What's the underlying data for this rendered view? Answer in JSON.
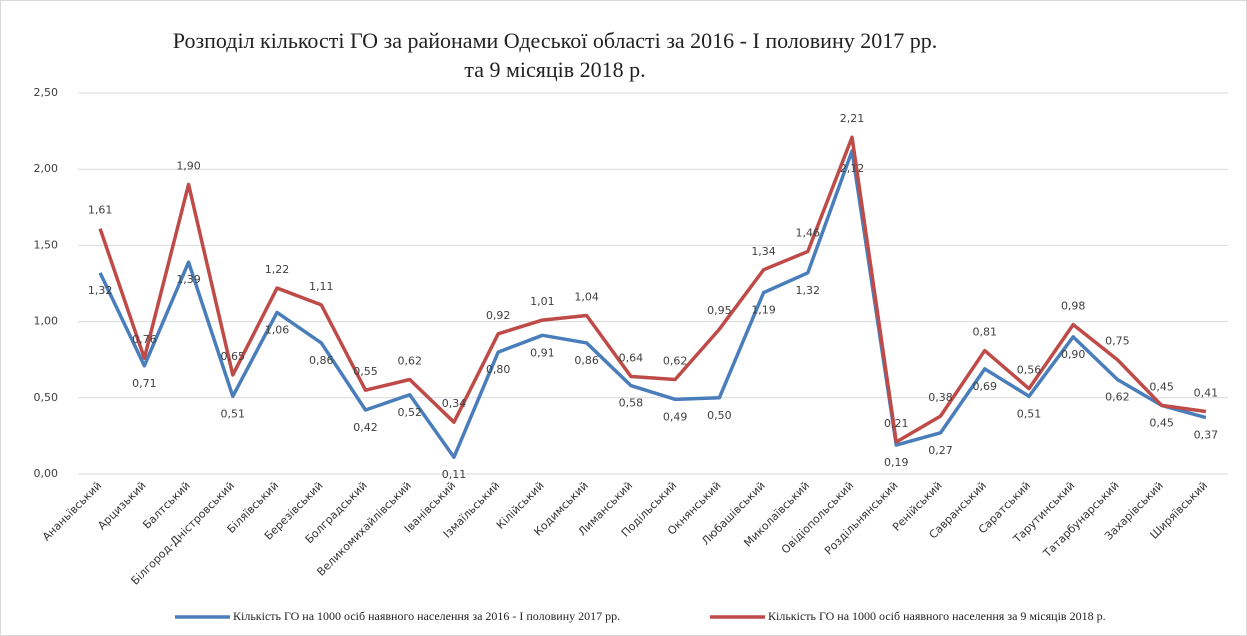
{
  "chart_data": {
    "type": "line",
    "title": [
      "Розподіл кількості ГО за районами Одеської області за 2016  - І половину 2017 рр.",
      "та 9 місяців 2018 р."
    ],
    "categories": [
      "Ананьївський",
      "Арцизький",
      "Балтський",
      "Білгород-Дністровський",
      "Біляївський",
      "Березівський",
      "Болградський",
      "Великомихайлівський",
      "Іванівський",
      "Ізмаїльський",
      "Кілійський",
      "Кодимський",
      "Лиманський",
      "Подільський",
      "Окнянський",
      "Любашівський",
      "Миколаївський",
      "Овідіопольський",
      "Роздільнянський",
      "Ренійський",
      "Савранський",
      "Саратський",
      "Тарутинський",
      "Татарбунарський",
      "Захарівський",
      "Ширяївський"
    ],
    "series": [
      {
        "name": "Кількість ГО на 1000 осіб наявного населення за 2016  - І половину 2017 рр.",
        "color": "#4a7ebb",
        "values": [
          1.32,
          0.71,
          1.39,
          0.51,
          1.06,
          0.86,
          0.42,
          0.52,
          0.11,
          0.8,
          0.91,
          0.86,
          0.58,
          0.49,
          0.5,
          1.19,
          1.32,
          2.12,
          0.19,
          0.27,
          0.69,
          0.51,
          0.9,
          0.62,
          0.45,
          0.37
        ],
        "value_labels": [
          "1,32",
          "0,71",
          "1,39",
          "0,51",
          "1,06",
          "0,86",
          "0,42",
          "0,52",
          "0,11",
          "0,80",
          "0,91",
          "0,86",
          "0,58",
          "0,49",
          "0,50",
          "1,19",
          "1,32",
          "2,12",
          "0,19",
          "0,27",
          "0,69",
          "0,51",
          "0,90",
          "0,62",
          "0,45",
          "0,37"
        ]
      },
      {
        "name": "Кількість ГО на 1000 осіб наявного населення за 9 місяців 2018 р.",
        "color": "#be4b48",
        "values": [
          1.61,
          0.76,
          1.9,
          0.65,
          1.22,
          1.11,
          0.55,
          0.62,
          0.34,
          0.92,
          1.01,
          1.04,
          0.64,
          0.62,
          0.95,
          1.34,
          1.46,
          2.21,
          0.21,
          0.38,
          0.81,
          0.56,
          0.98,
          0.75,
          0.45,
          0.41
        ],
        "value_labels": [
          "1,61",
          "0,76",
          "1,90",
          "0,65",
          "1,22",
          "1,11",
          "0,55",
          "0,62",
          "0,34",
          "0,92",
          "1,01",
          "1,04",
          "0,64",
          "0,62",
          "0,95",
          "1,34",
          "1,46",
          "2,21",
          "0,21",
          "0,38",
          "0,81",
          "0,56",
          "0,98",
          "0,75",
          "0,45",
          "0,41"
        ]
      }
    ],
    "ylim": [
      0,
      2.5
    ],
    "yticks": [
      {
        "value": 0,
        "label": "0,00"
      },
      {
        "value": 0.5,
        "label": "0,50"
      },
      {
        "value": 1,
        "label": "1,00"
      },
      {
        "value": 1.5,
        "label": "1,50"
      },
      {
        "value": 2,
        "label": "2,00"
      },
      {
        "value": 2.5,
        "label": "2,50"
      }
    ],
    "grid": true,
    "legend": "bottom"
  }
}
